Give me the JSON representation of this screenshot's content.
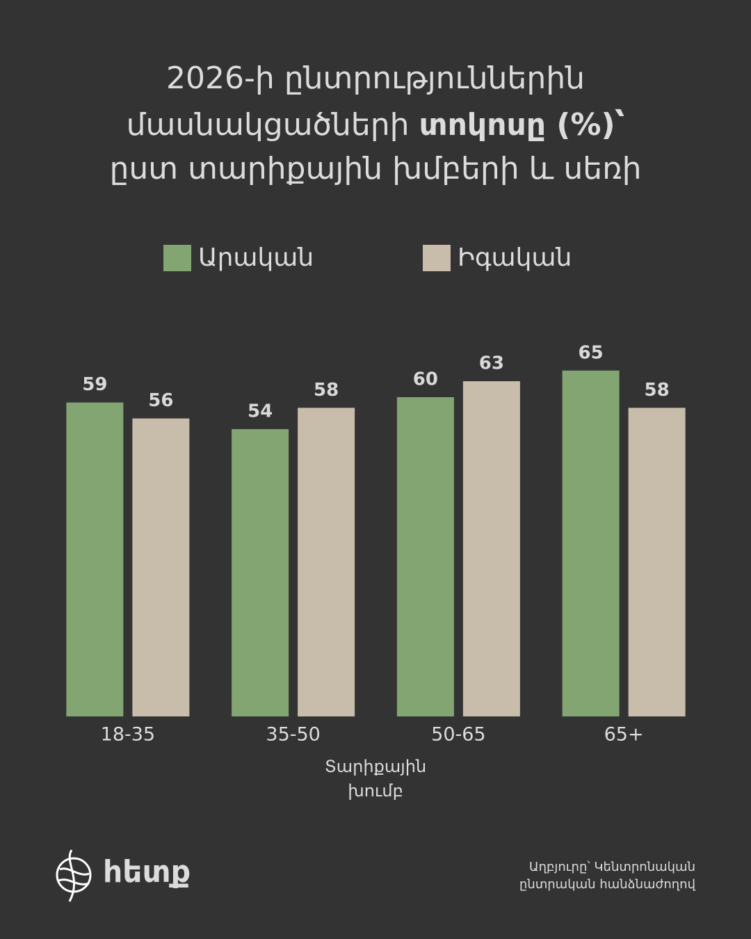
{
  "chart_data": {
    "type": "bar",
    "title": [
      "2026-ի ընտրություններին",
      "մասնակցածների",
      "տոկոսը (%)՝",
      "ըստ տարիքային խմբերի և սեռի"
    ],
    "categories": [
      "18-35",
      "35-50",
      "50-65",
      "65+"
    ],
    "series": [
      {
        "name": "Արական",
        "color": "#82a571",
        "values": [
          59,
          54,
          60,
          65
        ]
      },
      {
        "name": "Իգական",
        "color": "#c8bcab",
        "values": [
          56,
          58,
          63,
          58
        ]
      }
    ],
    "ylim": [
      0,
      100
    ],
    "x_label": [
      "Տարիքային",
      "խումբ"
    ],
    "source": [
      "Աղբյուրը՝ Կենտրոնական",
      "ընտրական հանձնաժողով"
    ],
    "logo": "հետք"
  }
}
